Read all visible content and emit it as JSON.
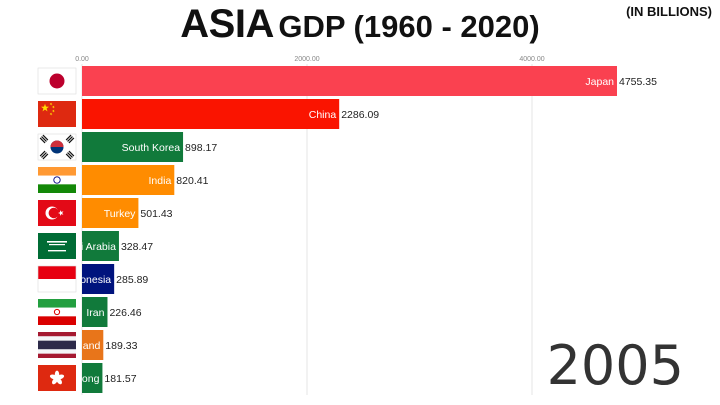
{
  "title_main": "ASIA",
  "title_rest": "GDP (1960 - 2020)",
  "units": "(IN BILLIONS)",
  "year": "2005",
  "chart_data": {
    "type": "bar",
    "orientation": "horizontal",
    "xlim": [
      0,
      4755.35
    ],
    "ticks": [
      {
        "value": 0,
        "label": "0.00"
      },
      {
        "value": 2000,
        "label": "2000.00"
      },
      {
        "value": 4000,
        "label": "4000.00"
      }
    ],
    "grid": true,
    "bars": [
      {
        "label": "Japan",
        "value": 4755.35,
        "value_label": "4755.35",
        "color": "#fa4150",
        "flag": "japan-flag"
      },
      {
        "label": "China",
        "value": 2286.09,
        "value_label": "2286.09",
        "color": "#fa1400",
        "flag": "china-flag"
      },
      {
        "label": "South Korea",
        "value": 898.17,
        "value_label": "898.17",
        "color": "#117a3b",
        "flag": "south-korea-flag"
      },
      {
        "label": "India",
        "value": 820.41,
        "value_label": "820.41",
        "color": "#ff8c00",
        "flag": "india-flag"
      },
      {
        "label": "Turkey",
        "value": 501.43,
        "value_label": "501.43",
        "color": "#ff8c00",
        "flag": "turkey-flag"
      },
      {
        "label": "i Arabia",
        "value": 328.47,
        "value_label": "328.47",
        "color": "#117a3b",
        "flag": "saudi-arabia-flag"
      },
      {
        "label": "onesia",
        "value": 285.89,
        "value_label": "285.89",
        "color": "#00137d",
        "flag": "indonesia-flag"
      },
      {
        "label": "Iran",
        "value": 226.46,
        "value_label": "226.46",
        "color": "#117a3b",
        "flag": "iran-flag"
      },
      {
        "label": "and",
        "value": 189.33,
        "value_label": "189.33",
        "color": "#e8751a",
        "flag": "thailand-flag"
      },
      {
        "label": "ong",
        "value": 181.57,
        "value_label": "181.57",
        "color": "#117a3b",
        "flag": "hong-kong-flag"
      }
    ]
  }
}
